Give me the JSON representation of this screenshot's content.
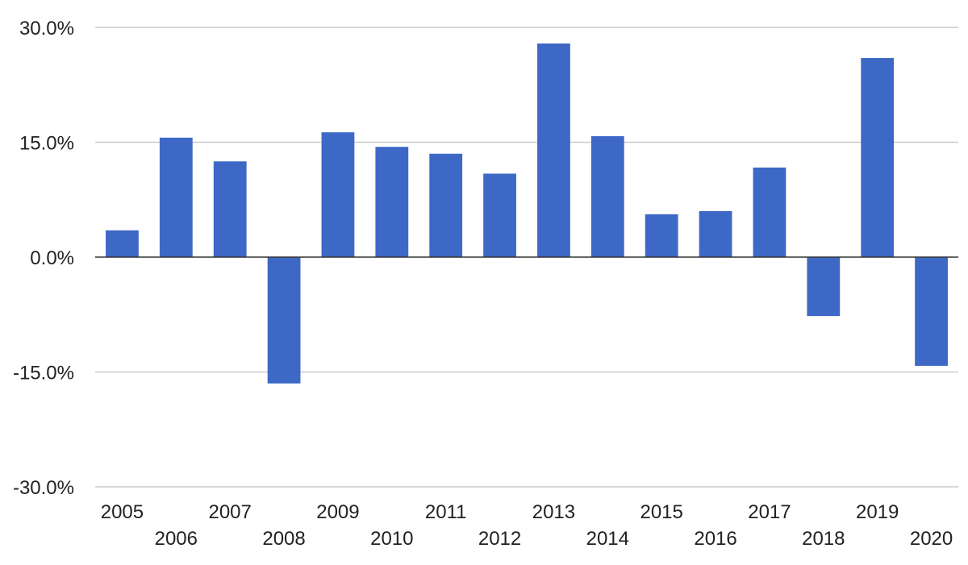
{
  "chart_data": {
    "type": "bar",
    "title": "",
    "xlabel": "",
    "ylabel": "",
    "categories": [
      "2005",
      "2006",
      "2007",
      "2008",
      "2009",
      "2010",
      "2011",
      "2012",
      "2013",
      "2014",
      "2015",
      "2016",
      "2017",
      "2018",
      "2019",
      "2020"
    ],
    "values": [
      3.5,
      15.6,
      12.5,
      -16.5,
      16.3,
      14.4,
      13.5,
      10.9,
      27.9,
      15.8,
      5.6,
      6.0,
      11.7,
      -7.7,
      26.0,
      -14.2
    ],
    "ylim": [
      -30,
      30
    ],
    "yticks": [
      30,
      15,
      0,
      -15,
      -30
    ],
    "ytick_labels": [
      "30.0%",
      "15.0%",
      "0.0%",
      "-15.0%",
      "-30.0%"
    ],
    "value_unit": "%",
    "bar_color": "#3e68c5",
    "grid": true,
    "legend": "none"
  }
}
